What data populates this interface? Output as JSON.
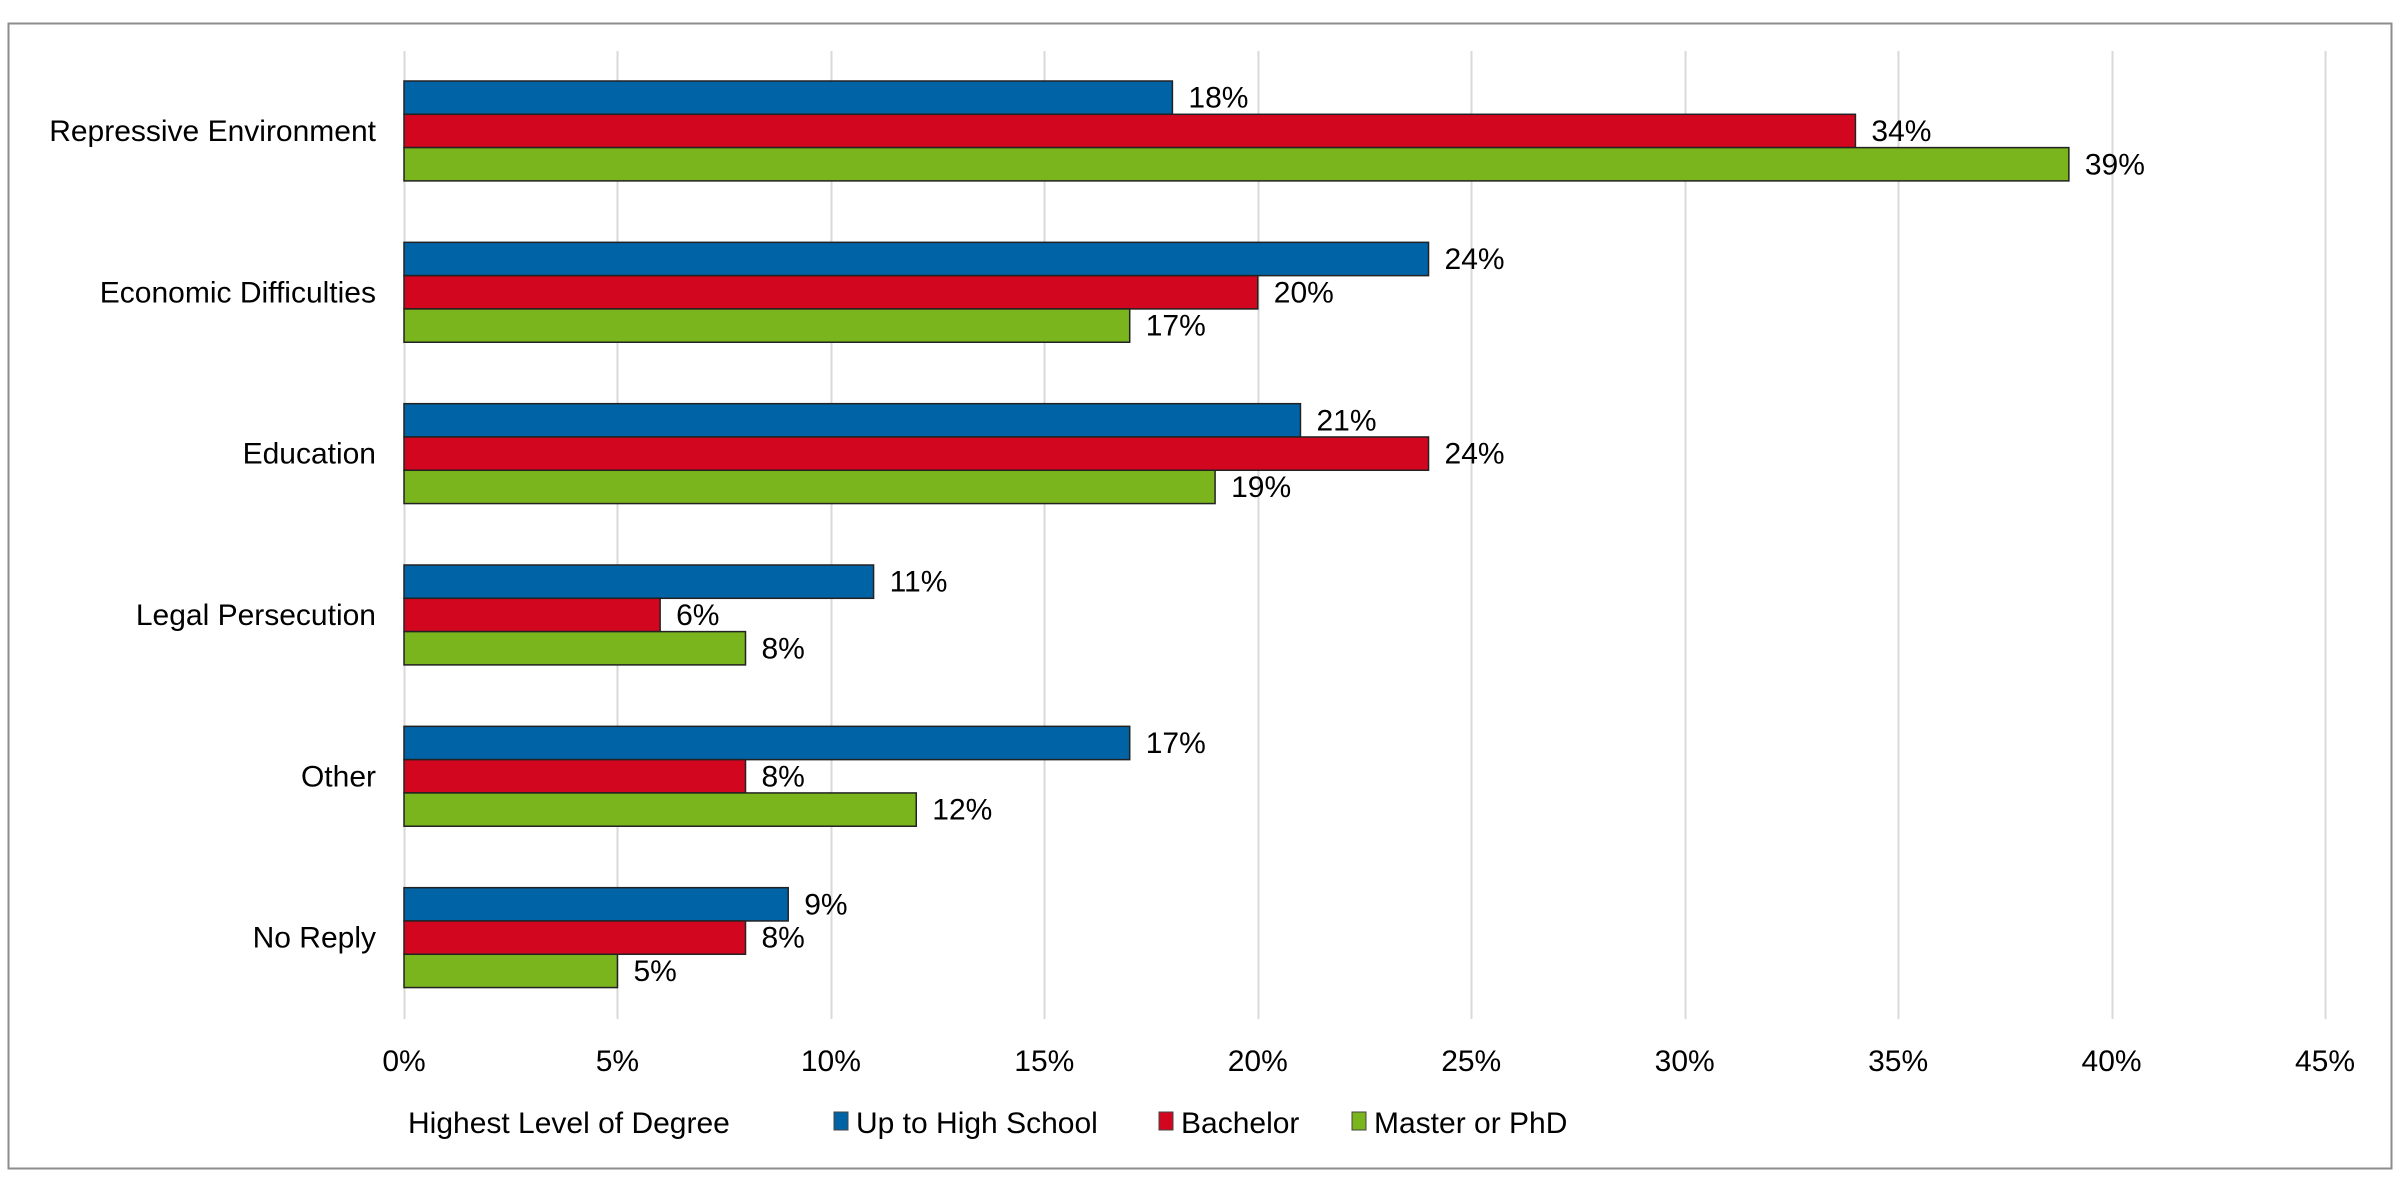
{
  "chart_data": {
    "type": "bar",
    "orientation": "horizontal",
    "categories": [
      "Repressive Environment",
      "Economic Difficulties",
      "Education",
      "Legal Persecution",
      "Other",
      "No Reply"
    ],
    "series": [
      {
        "name": "Up to High School",
        "color": "#0063a6",
        "values": [
          18,
          24,
          21,
          11,
          17,
          9
        ]
      },
      {
        "name": "Bachelor",
        "color": "#d2061f",
        "values": [
          34,
          20,
          24,
          6,
          8,
          8
        ]
      },
      {
        "name": "Master or PhD",
        "color": "#7ab51d",
        "values": [
          39,
          17,
          19,
          8,
          12,
          5
        ]
      }
    ],
    "value_suffix": "%",
    "xlim": [
      0,
      45
    ],
    "xticks": [
      0,
      5,
      10,
      15,
      20,
      25,
      30,
      35,
      40,
      45
    ],
    "xtick_labels": [
      "0%",
      "5%",
      "10%",
      "15%",
      "20%",
      "25%",
      "30%",
      "35%",
      "40%",
      "45%"
    ],
    "grid": "vertical",
    "legend": {
      "title": "Highest Level of Degree",
      "position": "bottom"
    },
    "title": "",
    "xlabel": "",
    "ylabel": ""
  }
}
